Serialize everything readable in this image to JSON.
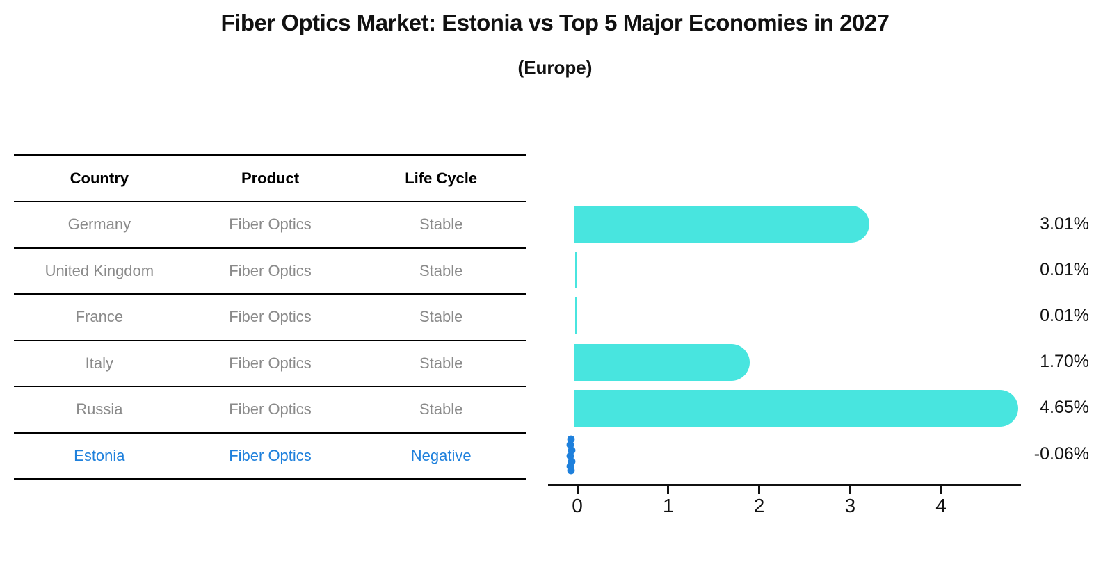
{
  "title": "Fiber Optics Market: Estonia vs Top 5 Major Economies in 2027",
  "subtitle": "(Europe)",
  "table": {
    "headers": [
      "Country",
      "Product",
      "Life Cycle"
    ],
    "rows": [
      {
        "country": "Germany",
        "product": "Fiber Optics",
        "life_cycle": "Stable",
        "highlight": false
      },
      {
        "country": "United Kingdom",
        "product": "Fiber Optics",
        "life_cycle": "Stable",
        "highlight": false
      },
      {
        "country": "France",
        "product": "Fiber Optics",
        "life_cycle": "Stable",
        "highlight": false
      },
      {
        "country": "Italy",
        "product": "Fiber Optics",
        "life_cycle": "Stable",
        "highlight": false
      },
      {
        "country": "Russia",
        "product": "Fiber Optics",
        "life_cycle": "Stable",
        "highlight": false
      },
      {
        "country": "Estonia",
        "product": "Fiber Optics",
        "life_cycle": "Negative",
        "highlight": true
      }
    ]
  },
  "chart_data": {
    "type": "bar",
    "orientation": "horizontal",
    "title": "Fiber Optics Market: Estonia vs Top 5 Major Economies in 2027",
    "subtitle": "(Europe)",
    "categories": [
      "Germany",
      "United Kingdom",
      "France",
      "Italy",
      "Russia",
      "Estonia"
    ],
    "values": [
      3.01,
      0.01,
      0.01,
      1.7,
      4.65,
      -0.06
    ],
    "value_labels": [
      "3.01%",
      "0.01%",
      "0.01%",
      "1.70%",
      "4.65%",
      "-0.06%"
    ],
    "x_ticks": [
      "0",
      "1",
      "2",
      "3",
      "4"
    ],
    "xlim": [
      -0.35,
      4.9
    ],
    "xlabel": "",
    "ylabel": "",
    "grid": false,
    "legend": false,
    "bar_color": "#48E5DF",
    "highlight_color": "#1E80DC",
    "highlight_index": 5
  },
  "colors": {
    "background": "#ffffff",
    "bar_cyan": "#48E5DF",
    "accent_blue": "#1E80DC",
    "text_muted": "#8a8a8a",
    "text_strong": "#111111"
  }
}
